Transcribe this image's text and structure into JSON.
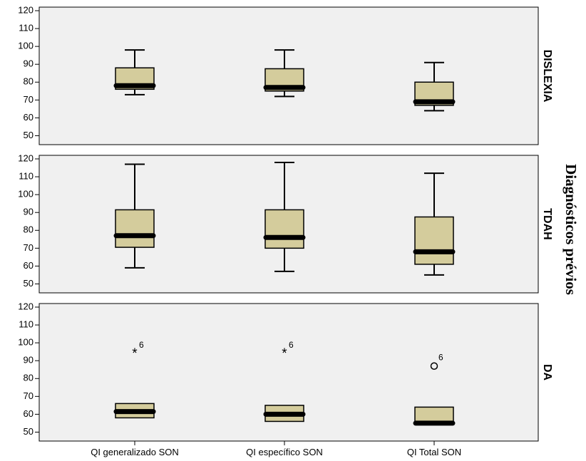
{
  "chart_data": {
    "type": "boxplot",
    "title": "",
    "xlabel": "",
    "ylabel": "",
    "facet_label": "Diagnósticos prévios",
    "categories": [
      "QI generalizado SON",
      "QI específico SON",
      "QI Total SON"
    ],
    "ylim": [
      45,
      122
    ],
    "yticks": [
      50,
      60,
      70,
      80,
      90,
      100,
      110,
      120
    ],
    "grid": false,
    "box_color": "#d4cc9c",
    "panel_background": "#f0f0f0",
    "panels": [
      {
        "label": "DISLEXIA",
        "boxes": [
          {
            "category": "QI generalizado SON",
            "min": 73,
            "q1": 76,
            "median": 78,
            "q3": 88,
            "max": 98,
            "outliers": []
          },
          {
            "category": "QI específico SON",
            "min": 72,
            "q1": 75,
            "median": 77,
            "q3": 87.5,
            "max": 98,
            "outliers": []
          },
          {
            "category": "QI Total SON",
            "min": 64,
            "q1": 67,
            "median": 69,
            "q3": 80,
            "max": 91,
            "outliers": []
          }
        ]
      },
      {
        "label": "TDAH",
        "boxes": [
          {
            "category": "QI generalizado SON",
            "min": 59,
            "q1": 70.5,
            "median": 77,
            "q3": 91.5,
            "max": 117,
            "outliers": []
          },
          {
            "category": "QI específico SON",
            "min": 57,
            "q1": 70,
            "median": 76,
            "q3": 91.5,
            "max": 118,
            "outliers": []
          },
          {
            "category": "QI Total SON",
            "min": 55,
            "q1": 61,
            "median": 68,
            "q3": 87.5,
            "max": 112,
            "outliers": []
          }
        ]
      },
      {
        "label": "DA",
        "boxes": [
          {
            "category": "QI generalizado SON",
            "min": 58,
            "q1": 58,
            "median": 61.5,
            "q3": 66,
            "max": 66,
            "outliers": [
              {
                "value": 94,
                "label": "6",
                "marker": "star"
              }
            ]
          },
          {
            "category": "QI específico SON",
            "min": 56,
            "q1": 56,
            "median": 60,
            "q3": 65,
            "max": 65,
            "outliers": [
              {
                "value": 94,
                "label": "6",
                "marker": "star"
              }
            ]
          },
          {
            "category": "QI Total SON",
            "min": 55,
            "q1": 55,
            "median": 55,
            "q3": 64,
            "max": 64,
            "outliers": [
              {
                "value": 87,
                "label": "6",
                "marker": "circle"
              }
            ]
          }
        ]
      }
    ]
  }
}
